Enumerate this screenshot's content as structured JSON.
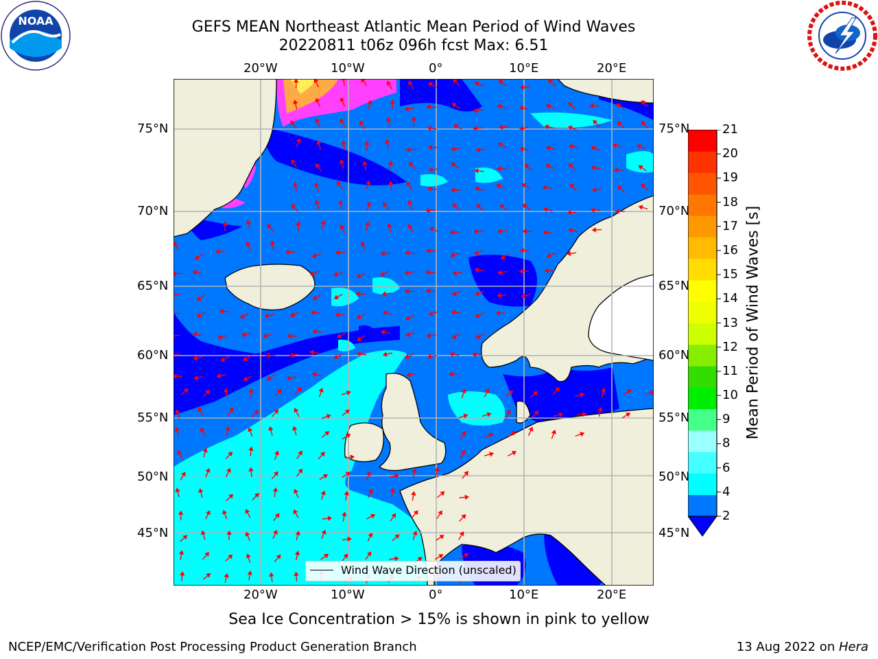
{
  "header": {
    "title_line1": "GEFS MEAN Northeast Atlantic Mean Period of Wind Waves",
    "title_line2": "20220811 t06z 096h fcst   Max: 6.51"
  },
  "logos": {
    "left": {
      "name": "noaa-logo",
      "text": "NOAA",
      "ring_text": "NATIONAL OCEANIC AND ATMOSPHERIC ADMINISTRATION · U.S. DEPARTMENT OF COMMERCE"
    },
    "right": {
      "name": "nws-logo",
      "ring_text": "NATIONAL WEATHER SERVICE"
    }
  },
  "map": {
    "lon_labels_top": [
      "20°W",
      "10°W",
      "0°",
      "10°E",
      "20°E"
    ],
    "lon_labels_bottom": [
      "20°W",
      "10°W",
      "0°",
      "10°E",
      "20°E"
    ],
    "lat_labels_left": [
      "75°N",
      "70°N",
      "65°N",
      "60°N",
      "55°N",
      "50°N",
      "45°N"
    ],
    "lat_labels_right": [
      "75°N",
      "70°N",
      "65°N",
      "60°N",
      "55°N",
      "50°N",
      "45°N"
    ],
    "legend_label": "Wind Wave Direction (unscaled)",
    "colors": {
      "land": "#efefdc",
      "ocean_low": "#0000ff",
      "ocean_mid": "#0077ff",
      "ocean_high": "#00ffff",
      "arrow": "#ff0000",
      "grid": "#b4b4b4",
      "ice": "#ff40ff"
    }
  },
  "colorbar": {
    "label": "Mean Period of Wind Waves [s]",
    "ticks": [
      "21",
      "20",
      "19",
      "18",
      "17",
      "16",
      "15",
      "14",
      "13",
      "12",
      "11",
      "10",
      "9",
      "8",
      "6",
      "4",
      "2"
    ],
    "colors": [
      "#0077ff",
      "#00ffff",
      "#44ffff",
      "#99ffff",
      "#44ff88",
      "#00ee00",
      "#33dd00",
      "#88ee00",
      "#ccff00",
      "#eeff00",
      "#ffff00",
      "#ffdd00",
      "#ffbb00",
      "#ff9900",
      "#ff7700",
      "#ff5500",
      "#ff3300",
      "#ff0000"
    ],
    "under_color": "#0000ff"
  },
  "caption": "Sea Ice Concentration > 15% is shown in pink to yellow",
  "footer": {
    "left": "NCEP/EMC/Verification Post Processing Product Generation Branch",
    "right_prefix": "13 Aug 2022 on ",
    "right_host": "Hera"
  }
}
